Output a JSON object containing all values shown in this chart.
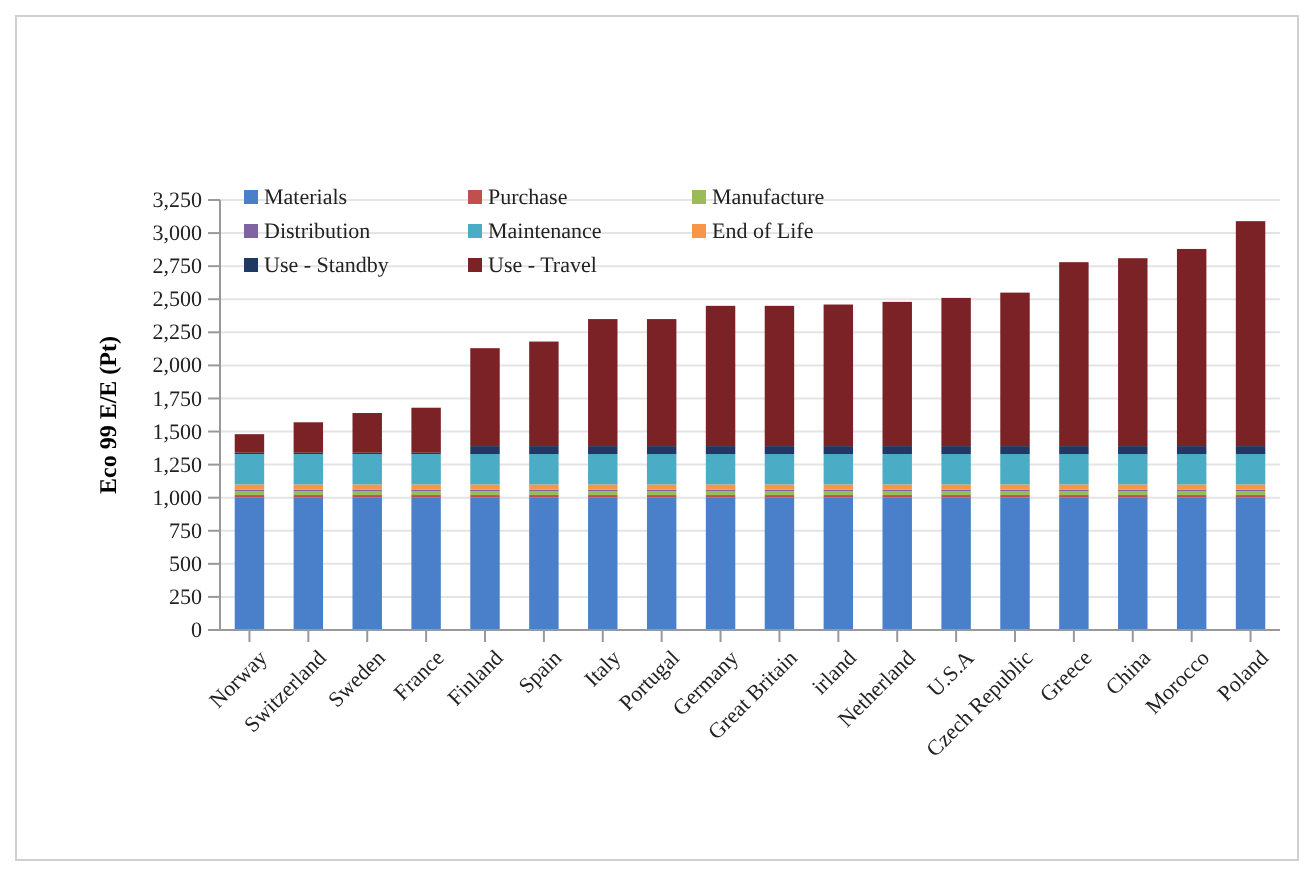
{
  "chart_data": {
    "type": "bar",
    "stacked": true,
    "ylabel": "Eco 99 E/E (Pt)",
    "categories": [
      "Norway",
      "Switzerland",
      "Sweden",
      "France",
      "Finland",
      "Spain",
      "Italy",
      "Portugal",
      "Germany",
      "Great Britain",
      "irland",
      "Netherland",
      "U.S.A",
      "Czech Republic",
      "Greece",
      "China",
      "Morocco",
      "Poland"
    ],
    "series": [
      {
        "name": "Materials",
        "color": "#4a7fc9",
        "values": [
          1000,
          1000,
          1000,
          1000,
          1000,
          1000,
          1000,
          1000,
          1000,
          1000,
          1000,
          1000,
          1000,
          1000,
          1000,
          1000,
          1000,
          1000
        ]
      },
      {
        "name": "Purchase",
        "color": "#c0504d",
        "values": [
          20,
          20,
          20,
          20,
          20,
          20,
          20,
          20,
          20,
          20,
          20,
          20,
          20,
          20,
          20,
          20,
          20,
          20
        ]
      },
      {
        "name": "Manufacture",
        "color": "#9bbb59",
        "values": [
          30,
          30,
          30,
          30,
          30,
          30,
          30,
          30,
          30,
          30,
          30,
          30,
          30,
          30,
          30,
          30,
          30,
          30
        ]
      },
      {
        "name": "Distribution",
        "color": "#8064a2",
        "values": [
          10,
          10,
          10,
          10,
          10,
          10,
          10,
          10,
          10,
          10,
          10,
          10,
          10,
          10,
          10,
          10,
          10,
          10
        ]
      },
      {
        "name": "End of Life",
        "color": "#f79646",
        "values": [
          40,
          40,
          40,
          40,
          40,
          40,
          40,
          40,
          40,
          40,
          40,
          40,
          40,
          40,
          40,
          40,
          40,
          40
        ]
      },
      {
        "name": "Maintenance",
        "color": "#4bacc6",
        "values": [
          230,
          230,
          230,
          230,
          230,
          230,
          230,
          230,
          230,
          230,
          230,
          230,
          230,
          230,
          230,
          230,
          230,
          230
        ]
      },
      {
        "name": "Use - Standby",
        "color": "#1f3864",
        "values": [
          10,
          10,
          10,
          10,
          60,
          60,
          60,
          60,
          60,
          60,
          60,
          60,
          60,
          60,
          60,
          60,
          60,
          60
        ]
      },
      {
        "name": "Use - Travel",
        "color": "#7b2226",
        "values": [
          140,
          230,
          300,
          340,
          740,
          790,
          960,
          960,
          1060,
          1060,
          1070,
          1090,
          1120,
          1160,
          1390,
          1420,
          1490,
          1700
        ]
      }
    ],
    "ylim": [
      0,
      3250
    ],
    "yticks": [
      {
        "value": 0,
        "label": "0"
      },
      {
        "value": 250,
        "label": "250"
      },
      {
        "value": 500,
        "label": "500"
      },
      {
        "value": 750,
        "label": "750"
      },
      {
        "value": 1000,
        "label": "1,000"
      },
      {
        "value": 1250,
        "label": "1,250"
      },
      {
        "value": 1500,
        "label": "1,500"
      },
      {
        "value": 1750,
        "label": "1,750"
      },
      {
        "value": 2000,
        "label": "2,000"
      },
      {
        "value": 2250,
        "label": "2,250"
      },
      {
        "value": 2500,
        "label": "2,500"
      },
      {
        "value": 2750,
        "label": "2,750"
      },
      {
        "value": 3000,
        "label": "3,000"
      },
      {
        "value": 3250,
        "label": "3,250"
      }
    ],
    "grid": "y",
    "legend": "top left"
  }
}
